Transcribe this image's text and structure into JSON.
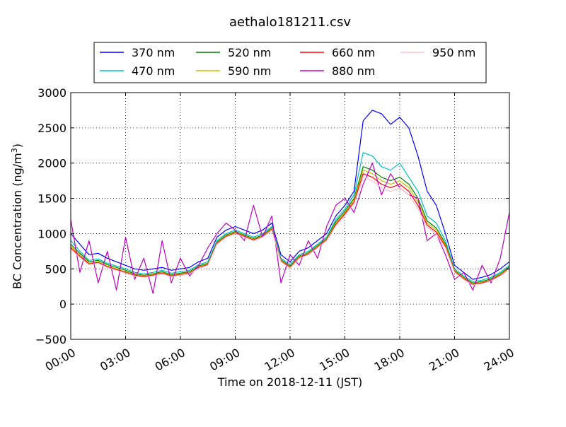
{
  "chart_data": {
    "type": "line",
    "title": "aethalo181211.csv",
    "xlabel": "Time on 2018-12-11 (JST)",
    "ylabel": "BC Concentration (ng/m",
    "ylabel_sup": "3",
    "ylabel_end": ")",
    "x_unit": "hours",
    "xlim": [
      0,
      24
    ],
    "ylim": [
      -500,
      3000
    ],
    "grid": true,
    "legend_placement": "top-center",
    "x_ticks": [
      {
        "value": 0,
        "label": "00:00"
      },
      {
        "value": 3,
        "label": "03:00"
      },
      {
        "value": 6,
        "label": "06:00"
      },
      {
        "value": 9,
        "label": "09:00"
      },
      {
        "value": 12,
        "label": "12:00"
      },
      {
        "value": 15,
        "label": "15:00"
      },
      {
        "value": 18,
        "label": "18:00"
      },
      {
        "value": 21,
        "label": "21:00"
      },
      {
        "value": 24,
        "label": "24:00"
      }
    ],
    "y_ticks": [
      {
        "value": -500,
        "label": "−500"
      },
      {
        "value": 0,
        "label": "0"
      },
      {
        "value": 500,
        "label": "500"
      },
      {
        "value": 1000,
        "label": "1000"
      },
      {
        "value": 1500,
        "label": "1500"
      },
      {
        "value": 2000,
        "label": "2000"
      },
      {
        "value": 2500,
        "label": "2500"
      },
      {
        "value": 3000,
        "label": "3000"
      }
    ],
    "x": [
      0,
      0.5,
      1,
      1.5,
      2,
      2.5,
      3,
      3.5,
      4,
      4.5,
      5,
      5.5,
      6,
      6.5,
      7,
      7.5,
      8,
      8.5,
      9,
      9.5,
      10,
      10.5,
      11,
      11.5,
      12,
      12.5,
      13,
      13.5,
      14,
      14.5,
      15,
      15.5,
      16,
      16.5,
      17,
      17.5,
      18,
      18.5,
      19,
      19.5,
      20,
      20.5,
      21,
      21.5,
      22,
      22.5,
      23,
      23.5,
      24
    ],
    "series": [
      {
        "name": "370 nm",
        "color": "#0000ff",
        "values": [
          1000,
          850,
          700,
          720,
          650,
          600,
          550,
          500,
          480,
          500,
          520,
          480,
          500,
          520,
          600,
          650,
          950,
          1050,
          1100,
          1050,
          1000,
          1050,
          1150,
          700,
          600,
          750,
          800,
          900,
          1000,
          1250,
          1400,
          1600,
          2600,
          2750,
          2700,
          2550,
          2650,
          2500,
          2100,
          1600,
          1400,
          1000,
          550,
          450,
          350,
          380,
          420,
          500,
          600
        ]
      },
      {
        "name": "470 nm",
        "color": "#00bfbf",
        "values": [
          900,
          750,
          620,
          640,
          580,
          540,
          500,
          450,
          430,
          450,
          480,
          440,
          460,
          480,
          560,
          600,
          900,
          1000,
          1050,
          1000,
          950,
          1000,
          1100,
          650,
          560,
          700,
          750,
          850,
          950,
          1200,
          1350,
          1550,
          2150,
          2100,
          1950,
          1900,
          2000,
          1800,
          1600,
          1250,
          1150,
          900,
          500,
          400,
          320,
          340,
          380,
          450,
          550
        ]
      },
      {
        "name": "520 nm",
        "color": "#008000",
        "values": [
          850,
          720,
          600,
          620,
          560,
          520,
          480,
          430,
          410,
          430,
          460,
          420,
          440,
          460,
          540,
          580,
          880,
          980,
          1030,
          980,
          930,
          980,
          1080,
          630,
          540,
          680,
          730,
          830,
          930,
          1170,
          1320,
          1500,
          1950,
          1900,
          1800,
          1750,
          1800,
          1700,
          1500,
          1180,
          1080,
          860,
          480,
          380,
          300,
          320,
          360,
          430,
          530
        ]
      },
      {
        "name": "590 nm",
        "color": "#bfbf00",
        "values": [
          820,
          700,
          580,
          600,
          540,
          500,
          460,
          420,
          400,
          420,
          450,
          410,
          430,
          450,
          530,
          570,
          870,
          970,
          1020,
          970,
          920,
          970,
          1070,
          620,
          530,
          670,
          720,
          820,
          920,
          1150,
          1300,
          1480,
          1900,
          1850,
          1750,
          1700,
          1750,
          1650,
          1450,
          1150,
          1050,
          840,
          470,
          370,
          290,
          310,
          350,
          420,
          520
        ]
      },
      {
        "name": "660 nm",
        "color": "#ff0000",
        "values": [
          800,
          680,
          570,
          590,
          530,
          490,
          450,
          410,
          390,
          410,
          440,
          400,
          420,
          440,
          520,
          560,
          860,
          960,
          1010,
          960,
          910,
          960,
          1060,
          610,
          520,
          660,
          710,
          810,
          910,
          1130,
          1280,
          1450,
          1850,
          1800,
          1700,
          1650,
          1700,
          1600,
          1400,
          1120,
          1020,
          820,
          460,
          360,
          280,
          300,
          340,
          410,
          510
        ]
      },
      {
        "name": "880 nm",
        "color": "#bf00bf",
        "values": [
          1200,
          450,
          900,
          300,
          750,
          200,
          950,
          350,
          650,
          150,
          900,
          300,
          650,
          400,
          550,
          800,
          1000,
          1150,
          1050,
          900,
          1400,
          950,
          1250,
          300,
          700,
          550,
          900,
          650,
          1100,
          1400,
          1500,
          1300,
          1700,
          2000,
          1550,
          1850,
          1650,
          1550,
          1500,
          900,
          1000,
          700,
          350,
          450,
          200,
          550,
          300,
          650,
          1300
        ]
      },
      {
        "name": "950 nm",
        "color": "#ffc0cb",
        "values": [
          780,
          660,
          560,
          580,
          520,
          480,
          440,
          400,
          380,
          400,
          430,
          390,
          410,
          430,
          510,
          550,
          850,
          950,
          1000,
          950,
          900,
          950,
          1050,
          600,
          510,
          650,
          700,
          800,
          900,
          1110,
          1260,
          1420,
          1800,
          1750,
          1650,
          1600,
          1650,
          1550,
          1350,
          1090,
          990,
          800,
          450,
          350,
          270,
          290,
          330,
          400,
          500
        ]
      }
    ]
  }
}
